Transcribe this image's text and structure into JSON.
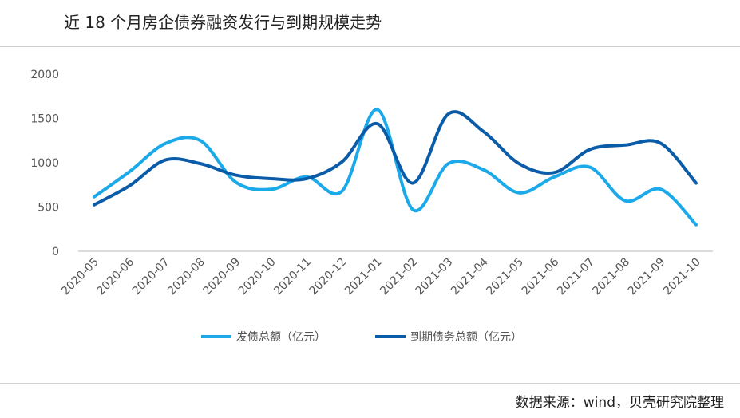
{
  "title": "近 18 个月房企债券融资发行与到期规模走势",
  "source": "数据来源：wind，贝壳研究院整理",
  "chart_data": {
    "type": "line",
    "title": "近 18 个月房企债券融资发行与到期规模走势",
    "xlabel": "",
    "ylabel": "",
    "ylim": [
      0,
      2000
    ],
    "yticks": [
      0,
      500,
      1000,
      1500,
      2000
    ],
    "grid": false,
    "legend_position": "bottom",
    "smooth": true,
    "categories": [
      "2020-05",
      "2020-06",
      "2020-07",
      "2020-08",
      "2020-09",
      "2020-10",
      "2020-11",
      "2020-12",
      "2021-01",
      "2021-02",
      "2021-03",
      "2021-04",
      "2021-05",
      "2021-06",
      "2021-07",
      "2021-08",
      "2021-09",
      "2021-10"
    ],
    "series": [
      {
        "name": "发债总额（亿元）",
        "color": "#1ba9ea",
        "values": [
          615,
          900,
          1215,
          1250,
          780,
          700,
          840,
          680,
          1600,
          470,
          990,
          920,
          660,
          840,
          950,
          570,
          700,
          300
        ]
      },
      {
        "name": "到期债务总额（亿元）",
        "color": "#0a5ca8",
        "values": [
          525,
          740,
          1030,
          990,
          860,
          820,
          820,
          1010,
          1440,
          770,
          1550,
          1350,
          990,
          890,
          1150,
          1200,
          1220,
          770
        ]
      }
    ]
  }
}
